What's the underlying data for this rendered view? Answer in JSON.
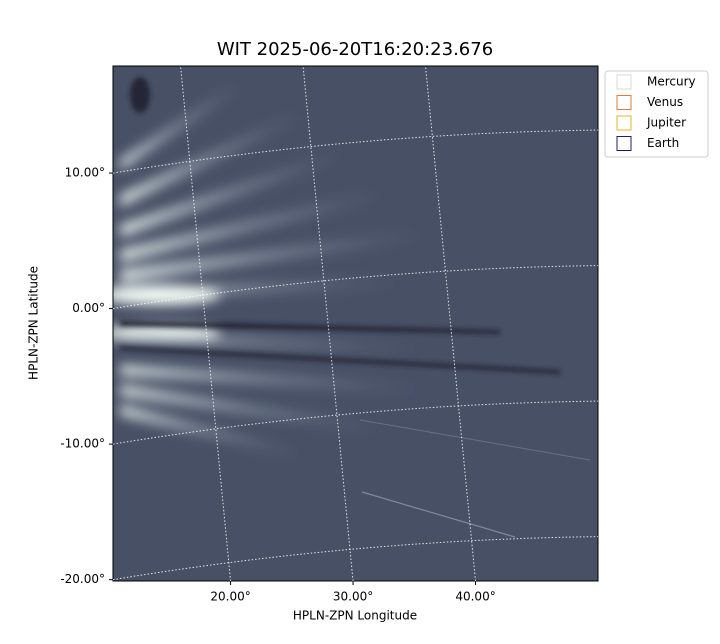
{
  "chart_data": {
    "type": "image",
    "title": "WIT 2025-06-20T16:20:23.676",
    "x_label": "HPLN-ZPN Longitude",
    "y_label": "HPLN-ZPN Latitude",
    "xlim": [
      10.4,
      50
    ],
    "ylim": [
      -20.1,
      17.9
    ],
    "xticks": [
      {
        "value": 20,
        "label": "20.00°"
      },
      {
        "value": 30,
        "label": "30.00°"
      },
      {
        "value": 40,
        "label": "40.00°"
      }
    ],
    "yticks": [
      {
        "value": -20,
        "label": "-20.00°"
      },
      {
        "value": -10,
        "label": "-10.00°"
      },
      {
        "value": 0,
        "label": "0.00°"
      },
      {
        "value": 10,
        "label": "10.00°"
      }
    ],
    "grid": true,
    "legend_position": "outside-upper-right",
    "series": [
      {
        "name": "Mercury",
        "color": "#d9d9d9"
      },
      {
        "name": "Venus",
        "color": "#e07b39"
      },
      {
        "name": "Jupiter",
        "color": "#e6b422"
      },
      {
        "name": "Earth",
        "color": "#1c1c78"
      }
    ]
  }
}
